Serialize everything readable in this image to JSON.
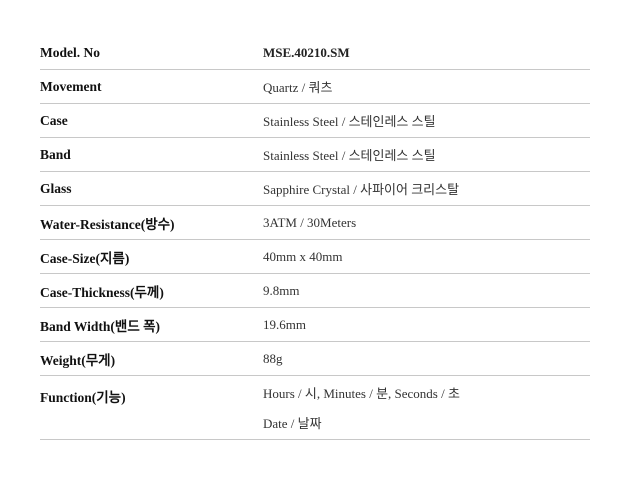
{
  "specs": [
    {
      "label": "Model. No",
      "value": "MSE.40210.SM"
    },
    {
      "label": "Movement",
      "value": "Quartz / 쿼츠"
    },
    {
      "label": "Case",
      "value": "Stainless Steel / 스테인레스 스틸"
    },
    {
      "label": "Band",
      "value": "Stainless Steel / 스테인레스 스틸"
    },
    {
      "label": "Glass",
      "value": "Sapphire Crystal / 사파이어 크리스탈"
    },
    {
      "label": "Water-Resistance(방수)",
      "value": "3ATM / 30Meters"
    },
    {
      "label": "Case-Size(지름)",
      "value": "40mm x 40mm"
    },
    {
      "label": "Case-Thickness(두께)",
      "value": "9.8mm"
    },
    {
      "label": "Band Width(밴드 폭)",
      "value": "19.6mm"
    },
    {
      "label": "Weight(무게)",
      "value": "88g"
    },
    {
      "label": "Function(기능)",
      "value": "Hours / 시, Minutes / 분, Seconds / 초",
      "value2": "Date / 날짜"
    }
  ]
}
